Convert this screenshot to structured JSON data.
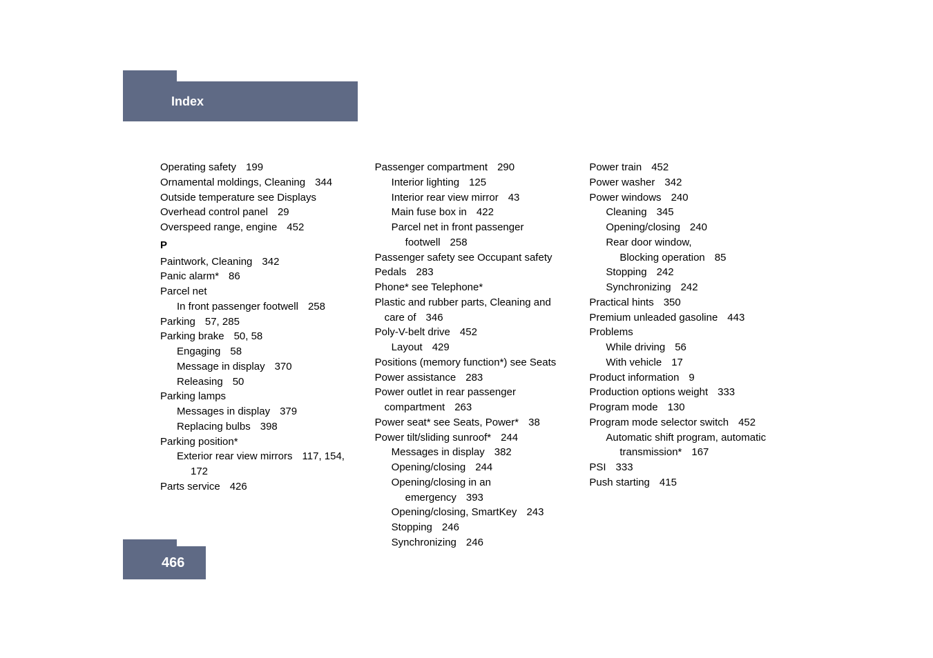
{
  "header": {
    "title": "Index"
  },
  "pageNumber": "466",
  "col1": [
    {
      "text": "Operating safety",
      "page": "199",
      "indent": 0
    },
    {
      "text": "Ornamental moldings, Cleaning",
      "page": "344",
      "indent": 0
    },
    {
      "text": "Outside temperature see Displays",
      "page": "",
      "indent": 0
    },
    {
      "text": "Overhead control panel",
      "page": "29",
      "indent": 0
    },
    {
      "text": "Overspeed range, engine",
      "page": "452",
      "indent": 0
    },
    {
      "text": "P",
      "page": "",
      "indent": 0,
      "section": true
    },
    {
      "text": "Paintwork, Cleaning",
      "page": "342",
      "indent": 0
    },
    {
      "text": "Panic alarm*",
      "page": "86",
      "indent": 0
    },
    {
      "text": "Parcel net",
      "page": "",
      "indent": 0
    },
    {
      "text": "In front passenger footwell",
      "page": "258",
      "indent": 1
    },
    {
      "text": "Parking",
      "page": "57, 285",
      "indent": 0
    },
    {
      "text": "Parking brake",
      "page": "50, 58",
      "indent": 0
    },
    {
      "text": "Engaging",
      "page": "58",
      "indent": 1
    },
    {
      "text": "Message in display",
      "page": "370",
      "indent": 1
    },
    {
      "text": "Releasing",
      "page": "50",
      "indent": 1
    },
    {
      "text": "Parking lamps",
      "page": "",
      "indent": 0
    },
    {
      "text": "Messages in display",
      "page": "379",
      "indent": 1
    },
    {
      "text": "Replacing bulbs",
      "page": "398",
      "indent": 1
    },
    {
      "text": "Parking position*",
      "page": "",
      "indent": 0
    },
    {
      "text": "Exterior rear view mirrors",
      "page": "117, 154, ",
      "indent": 1
    },
    {
      "text": "172",
      "page": "",
      "indent": 2,
      "raw": true
    },
    {
      "text": "Parts service",
      "page": "426",
      "indent": 0
    }
  ],
  "col2": [
    {
      "text": "Passenger compartment",
      "page": "290",
      "indent": 0
    },
    {
      "text": "Interior lighting",
      "page": "125",
      "indent": 1
    },
    {
      "text": "Interior rear view mirror",
      "page": "43",
      "indent": 1
    },
    {
      "text": "Main fuse box in",
      "page": "422",
      "indent": 1
    },
    {
      "text": "Parcel net in front passenger ",
      "page": "",
      "indent": 1
    },
    {
      "text": "footwell",
      "page": "258",
      "indent": 2
    },
    {
      "text": "Passenger safety see Occupant safety",
      "page": "",
      "indent": 0
    },
    {
      "text": "Pedals",
      "page": "283",
      "indent": 0
    },
    {
      "text": "Phone* see Telephone*",
      "page": "",
      "indent": 0
    },
    {
      "text": "Plastic and rubber parts, Cleaning and ",
      "page": "",
      "indent": 0
    },
    {
      "text": "care of",
      "page": "346",
      "indent": 0,
      "cont": true
    },
    {
      "text": "Poly-V-belt drive",
      "page": "452",
      "indent": 0
    },
    {
      "text": "Layout",
      "page": "429",
      "indent": 1
    },
    {
      "text": "Positions (memory function*) see Seats",
      "page": "",
      "indent": 0
    },
    {
      "text": "Power assistance",
      "page": "283",
      "indent": 0
    },
    {
      "text": "Power outlet in rear passenger ",
      "page": "",
      "indent": 0
    },
    {
      "text": "compartment",
      "page": "263",
      "indent": 0,
      "cont": true
    },
    {
      "text": "Power seat* see Seats, Power*",
      "page": "38",
      "indent": 0
    },
    {
      "text": "Power tilt/sliding sunroof*",
      "page": "244",
      "indent": 0
    },
    {
      "text": "Messages in display",
      "page": "382",
      "indent": 1
    },
    {
      "text": "Opening/closing",
      "page": "244",
      "indent": 1
    },
    {
      "text": "Opening/closing in an ",
      "page": "",
      "indent": 1
    },
    {
      "text": "emergency",
      "page": "393",
      "indent": 2
    },
    {
      "text": "Opening/closing, SmartKey",
      "page": "243",
      "indent": 1
    },
    {
      "text": "Stopping",
      "page": "246",
      "indent": 1
    },
    {
      "text": "Synchronizing",
      "page": "246",
      "indent": 1
    }
  ],
  "col3": [
    {
      "text": "Power train",
      "page": "452",
      "indent": 0
    },
    {
      "text": "Power washer",
      "page": "342",
      "indent": 0
    },
    {
      "text": "Power windows",
      "page": "240",
      "indent": 0
    },
    {
      "text": "Cleaning",
      "page": "345",
      "indent": 1
    },
    {
      "text": "Opening/closing",
      "page": "240",
      "indent": 1
    },
    {
      "text": "Rear door window, ",
      "page": "",
      "indent": 1
    },
    {
      "text": "Blocking operation",
      "page": "85",
      "indent": 2
    },
    {
      "text": "Stopping",
      "page": "242",
      "indent": 1
    },
    {
      "text": "Synchronizing",
      "page": "242",
      "indent": 1
    },
    {
      "text": "Practical hints",
      "page": "350",
      "indent": 0
    },
    {
      "text": "Premium unleaded gasoline",
      "page": "443",
      "indent": 0
    },
    {
      "text": "Problems",
      "page": "",
      "indent": 0
    },
    {
      "text": "While driving",
      "page": "56",
      "indent": 1
    },
    {
      "text": "With vehicle",
      "page": "17",
      "indent": 1
    },
    {
      "text": "Product information",
      "page": "9",
      "indent": 0
    },
    {
      "text": "Production options weight",
      "page": "333",
      "indent": 0
    },
    {
      "text": "Program mode",
      "page": "130",
      "indent": 0
    },
    {
      "text": "Program mode selector switch",
      "page": "452",
      "indent": 0
    },
    {
      "text": "Automatic shift program, automatic ",
      "page": "",
      "indent": 1
    },
    {
      "text": "transmission*",
      "page": "167",
      "indent": 2
    },
    {
      "text": "PSI",
      "page": "333",
      "indent": 0
    },
    {
      "text": "Push starting",
      "page": "415",
      "indent": 0
    }
  ]
}
